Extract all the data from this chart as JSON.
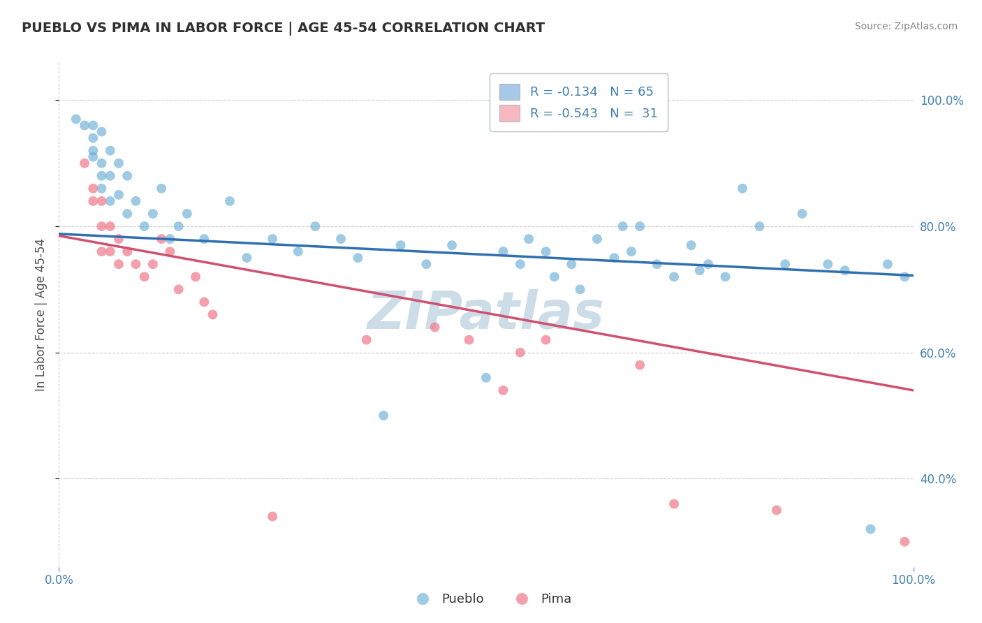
{
  "title": "PUEBLO VS PIMA IN LABOR FORCE | AGE 45-54 CORRELATION CHART",
  "source_text": "Source: ZipAtlas.com",
  "ylabel": "In Labor Force | Age 45-54",
  "pueblo_R": -0.134,
  "pueblo_N": 65,
  "pima_R": -0.543,
  "pima_N": 31,
  "pueblo_color": "#6baed6",
  "pima_color": "#f08090",
  "pueblo_line_color": "#3070b0",
  "pima_line_color": "#d05070",
  "legend_blue_fill": "#a8c8e8",
  "legend_pink_fill": "#f8b8c0",
  "pueblo_scatter": [
    [
      0.02,
      0.97
    ],
    [
      0.03,
      0.96
    ],
    [
      0.04,
      0.96
    ],
    [
      0.04,
      0.94
    ],
    [
      0.04,
      0.92
    ],
    [
      0.04,
      0.91
    ],
    [
      0.05,
      0.95
    ],
    [
      0.05,
      0.9
    ],
    [
      0.05,
      0.88
    ],
    [
      0.05,
      0.86
    ],
    [
      0.06,
      0.92
    ],
    [
      0.06,
      0.88
    ],
    [
      0.06,
      0.84
    ],
    [
      0.07,
      0.9
    ],
    [
      0.07,
      0.85
    ],
    [
      0.08,
      0.88
    ],
    [
      0.08,
      0.82
    ],
    [
      0.09,
      0.84
    ],
    [
      0.1,
      0.8
    ],
    [
      0.11,
      0.82
    ],
    [
      0.12,
      0.86
    ],
    [
      0.13,
      0.78
    ],
    [
      0.14,
      0.8
    ],
    [
      0.15,
      0.82
    ],
    [
      0.17,
      0.78
    ],
    [
      0.2,
      0.84
    ],
    [
      0.22,
      0.75
    ],
    [
      0.25,
      0.78
    ],
    [
      0.28,
      0.76
    ],
    [
      0.3,
      0.8
    ],
    [
      0.33,
      0.78
    ],
    [
      0.35,
      0.75
    ],
    [
      0.38,
      0.5
    ],
    [
      0.4,
      0.77
    ],
    [
      0.43,
      0.74
    ],
    [
      0.46,
      0.77
    ],
    [
      0.5,
      0.56
    ],
    [
      0.52,
      0.76
    ],
    [
      0.54,
      0.74
    ],
    [
      0.55,
      0.78
    ],
    [
      0.57,
      0.76
    ],
    [
      0.58,
      0.72
    ],
    [
      0.6,
      0.74
    ],
    [
      0.61,
      0.7
    ],
    [
      0.62,
      0.96
    ],
    [
      0.63,
      0.78
    ],
    [
      0.65,
      0.75
    ],
    [
      0.66,
      0.8
    ],
    [
      0.67,
      0.76
    ],
    [
      0.68,
      0.8
    ],
    [
      0.7,
      0.74
    ],
    [
      0.72,
      0.72
    ],
    [
      0.74,
      0.77
    ],
    [
      0.75,
      0.73
    ],
    [
      0.76,
      0.74
    ],
    [
      0.78,
      0.72
    ],
    [
      0.8,
      0.86
    ],
    [
      0.82,
      0.8
    ],
    [
      0.85,
      0.74
    ],
    [
      0.87,
      0.82
    ],
    [
      0.9,
      0.74
    ],
    [
      0.92,
      0.73
    ],
    [
      0.95,
      0.32
    ],
    [
      0.97,
      0.74
    ],
    [
      0.99,
      0.72
    ]
  ],
  "pima_scatter": [
    [
      0.03,
      0.9
    ],
    [
      0.04,
      0.84
    ],
    [
      0.04,
      0.86
    ],
    [
      0.05,
      0.8
    ],
    [
      0.05,
      0.84
    ],
    [
      0.05,
      0.76
    ],
    [
      0.06,
      0.8
    ],
    [
      0.06,
      0.76
    ],
    [
      0.07,
      0.78
    ],
    [
      0.07,
      0.74
    ],
    [
      0.08,
      0.76
    ],
    [
      0.09,
      0.74
    ],
    [
      0.1,
      0.72
    ],
    [
      0.11,
      0.74
    ],
    [
      0.12,
      0.78
    ],
    [
      0.13,
      0.76
    ],
    [
      0.14,
      0.7
    ],
    [
      0.16,
      0.72
    ],
    [
      0.17,
      0.68
    ],
    [
      0.18,
      0.66
    ],
    [
      0.25,
      0.34
    ],
    [
      0.36,
      0.62
    ],
    [
      0.44,
      0.64
    ],
    [
      0.48,
      0.62
    ],
    [
      0.52,
      0.54
    ],
    [
      0.54,
      0.6
    ],
    [
      0.57,
      0.62
    ],
    [
      0.68,
      0.58
    ],
    [
      0.72,
      0.36
    ],
    [
      0.84,
      0.35
    ],
    [
      0.99,
      0.3
    ]
  ],
  "pueblo_line": {
    "x0": 0.0,
    "y0": 0.788,
    "x1": 1.0,
    "y1": 0.722
  },
  "pima_line": {
    "x0": 0.0,
    "y0": 0.785,
    "x1": 1.0,
    "y1": 0.54
  },
  "xlim": [
    0.0,
    1.0
  ],
  "ylim": [
    0.26,
    1.06
  ],
  "y_ticks": [
    0.4,
    0.6,
    0.8,
    1.0
  ],
  "y_tick_labels": [
    "40.0%",
    "60.0%",
    "80.0%",
    "100.0%"
  ],
  "background_color": "#ffffff",
  "grid_color": "#c8c8c8",
  "title_color": "#303030",
  "source_color": "#888888",
  "watermark_text": "ZIPatlas",
  "watermark_color": "#ccdde8",
  "axis_tick_color": "#4080b0"
}
